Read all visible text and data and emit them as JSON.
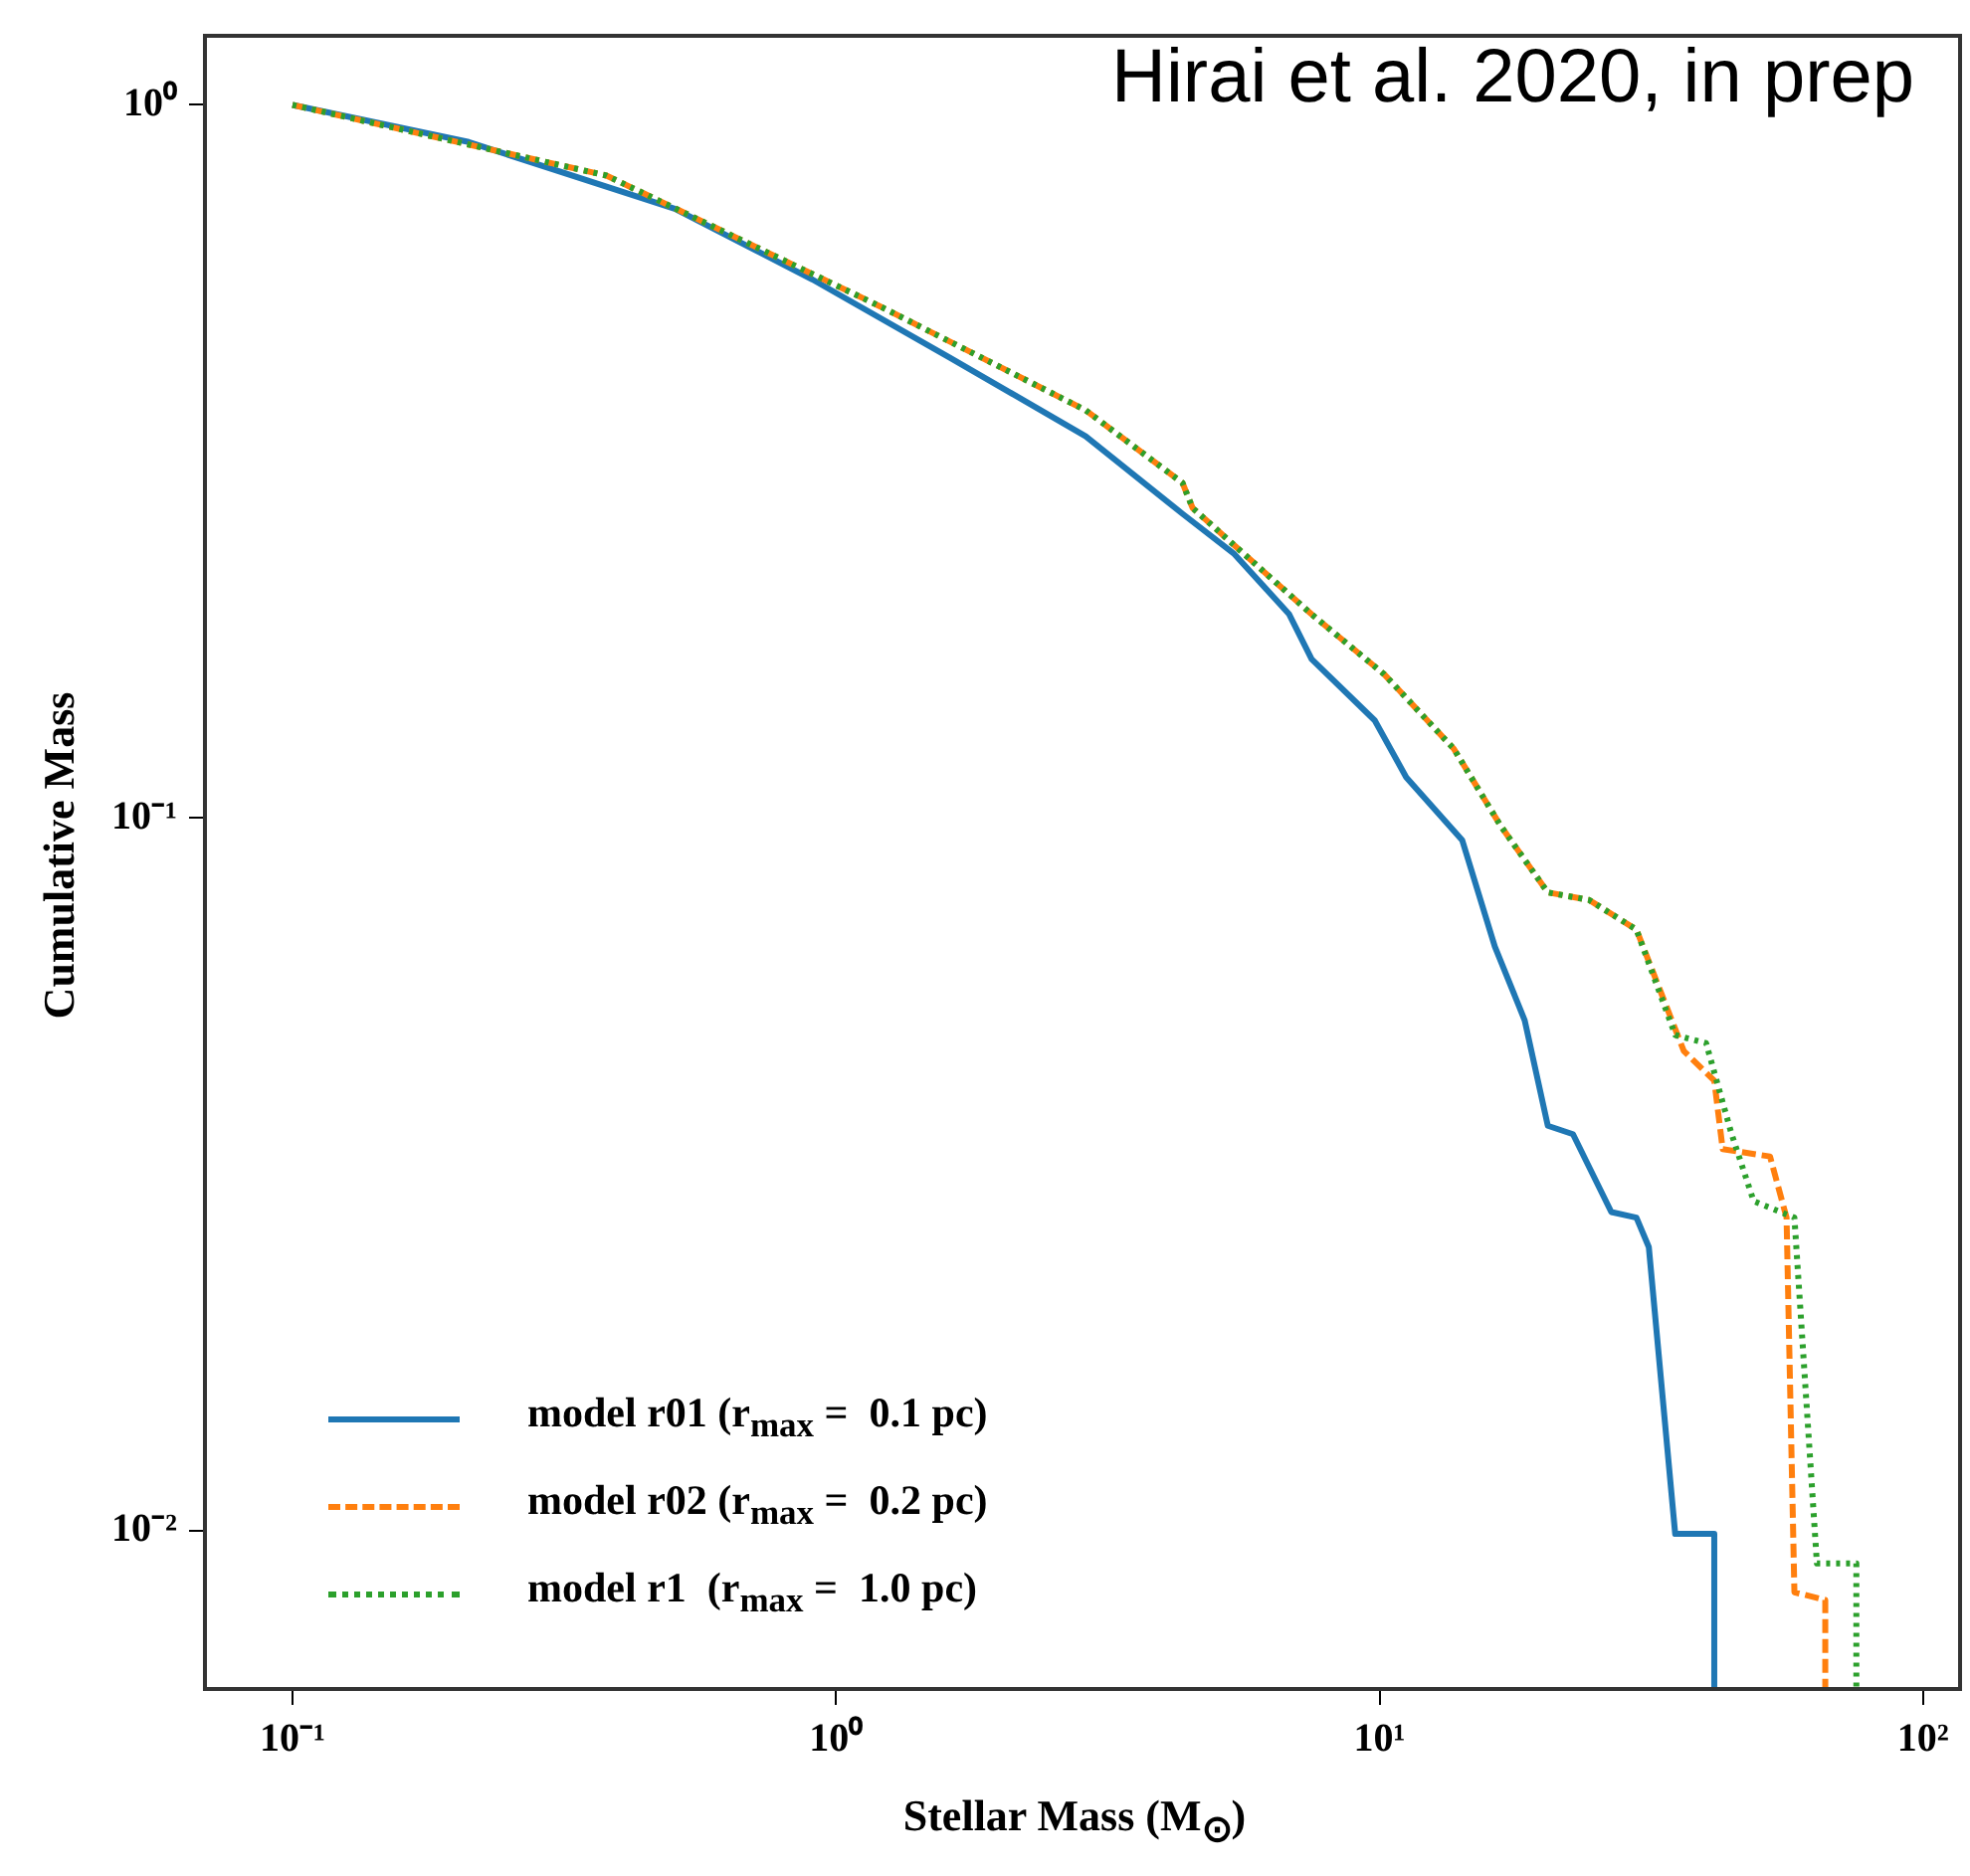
{
  "chart_data": {
    "type": "line",
    "xlabel": "Stellar Mass (M$_{⊙}$)",
    "ylabel": "Cumulative Mass",
    "log": "xy",
    "grid": false,
    "legend": "bottom left",
    "marker": "none",
    "xlim": [
      0.069,
      117
    ],
    "ylim": [
      0.006,
      1.25
    ],
    "xticks": [
      {
        "value": 0.1,
        "label": "10⁻¹"
      },
      {
        "value": 1,
        "label": "10⁰"
      },
      {
        "value": 10,
        "label": "10¹"
      },
      {
        "value": 100,
        "label": "10²"
      }
    ],
    "yticks": [
      {
        "value": 0.01,
        "label": "10⁻²"
      },
      {
        "value": 0.1,
        "label": "10⁻¹"
      },
      {
        "value": 1,
        "label": "10⁰"
      }
    ],
    "annotations": [
      "Hirai et al. 2020, in prep"
    ],
    "series": [
      {
        "name": "model r01 (r$_{max}$ =  0.1 pc)",
        "color": "#1f77b4",
        "line_style": "solid",
        "x": [
          0.1,
          0.211,
          0.505,
          0.905,
          1.62,
          2.88,
          4.34,
          5.39,
          6.82,
          7.5,
          9.8,
          11.2,
          14.2,
          16.3,
          18.5,
          20.4,
          22.7,
          26.7,
          29.7,
          31.3,
          35.0,
          41.3,
          41.3
        ],
        "values": [
          1.0,
          0.887,
          0.715,
          0.569,
          0.442,
          0.343,
          0.267,
          0.235,
          0.193,
          0.167,
          0.137,
          0.114,
          0.093,
          0.066,
          0.052,
          0.037,
          0.036,
          0.028,
          0.0275,
          0.025,
          0.0099,
          0.0099,
          0.006
        ]
      },
      {
        "name": "model r02 (r$_{max}$ =  0.2 pc)",
        "color": "#ff7f0e",
        "line_style": "dashed",
        "x": [
          0.1,
          0.378,
          1.21,
          2.88,
          4.34,
          4.53,
          7.5,
          10.2,
          13.7,
          16.7,
          20.4,
          24.3,
          29.7,
          36.3,
          41.3,
          42.8,
          52.3,
          56.1,
          58.0,
          66.1,
          66.1
        ],
        "values": [
          1.0,
          0.796,
          0.521,
          0.373,
          0.295,
          0.272,
          0.193,
          0.159,
          0.125,
          0.0975,
          0.0786,
          0.0767,
          0.0697,
          0.0471,
          0.0428,
          0.0343,
          0.0335,
          0.0275,
          0.0082,
          0.008,
          0.006
        ]
      },
      {
        "name": "model r1  (r$_{max}$ =  1.0 pc)",
        "color": "#2ca02c",
        "line_style": "dotted",
        "x": [
          0.1,
          0.378,
          1.21,
          2.88,
          4.34,
          4.53,
          7.5,
          10.2,
          13.7,
          16.7,
          20.4,
          24.3,
          29.7,
          35.0,
          39.9,
          44.4,
          48.8,
          58.0,
          63.8,
          75.4,
          75.4
        ],
        "values": [
          1.0,
          0.796,
          0.521,
          0.373,
          0.295,
          0.272,
          0.193,
          0.159,
          0.125,
          0.0975,
          0.0786,
          0.0767,
          0.0697,
          0.0496,
          0.0483,
          0.0361,
          0.029,
          0.0275,
          0.009,
          0.009,
          0.006
        ]
      }
    ]
  }
}
